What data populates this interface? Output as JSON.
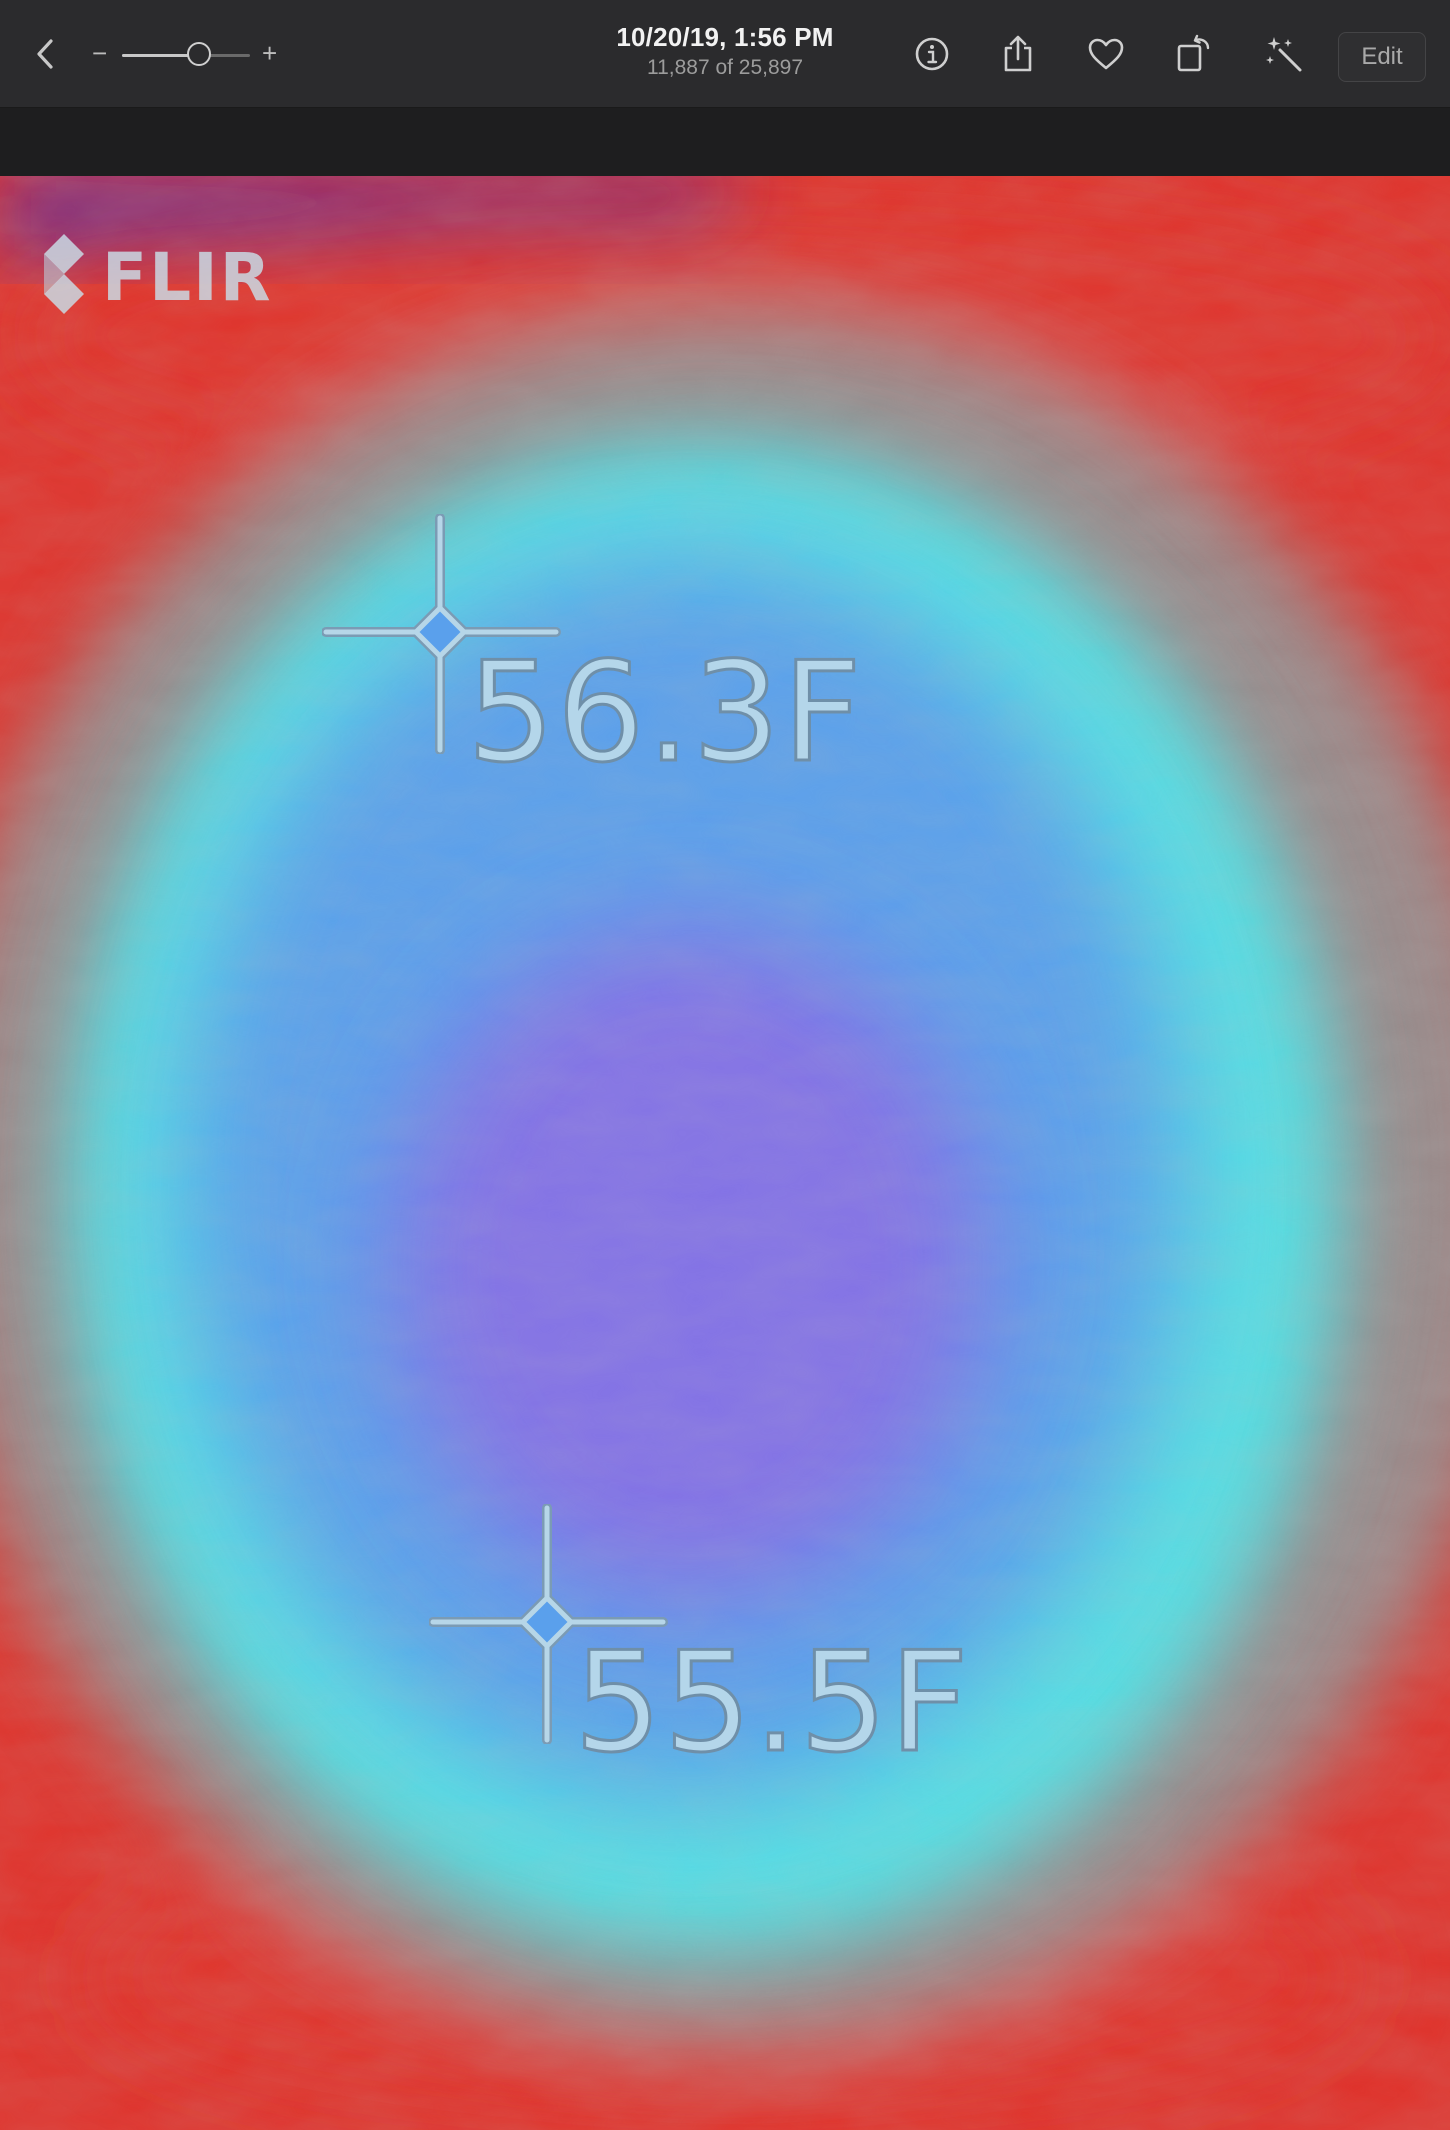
{
  "window": {
    "title_date": "10/20/19, 1:56 PM",
    "title_count": "11,887 of 25,897"
  },
  "toolbar": {
    "back_icon": "chevron-left-icon",
    "zoom": {
      "minus_label": "−",
      "plus_label": "+",
      "level": 0.6
    },
    "info_icon": "info-icon",
    "share_icon": "share-icon",
    "favorite_icon": "heart-icon",
    "rotate_icon": "rotate-icon",
    "enhance_icon": "magic-wand-icon",
    "edit_label": "Edit"
  },
  "photo": {
    "logo_text": "FLIR",
    "spots": [
      {
        "label": "56.3F"
      },
      {
        "label": "55.5F"
      }
    ],
    "palette": {
      "hot": "#e0332c",
      "warm": "#9a8a8a",
      "cool": "#55e0e4",
      "cold": "#5aa0ec",
      "coldest": "#8a6ae6"
    }
  }
}
